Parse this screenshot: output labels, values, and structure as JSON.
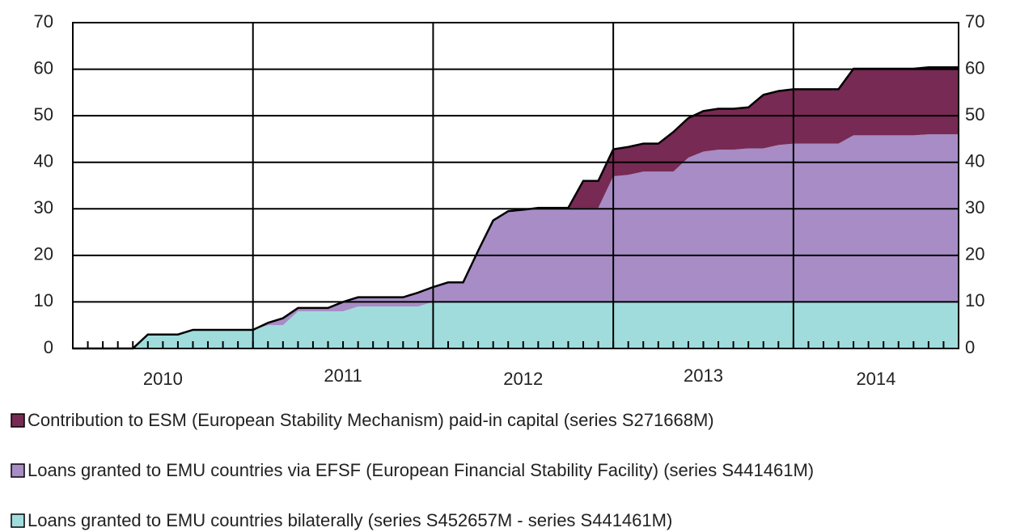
{
  "chart_data": {
    "type": "stacked_area",
    "categories": [
      null,
      null,
      null,
      null,
      null,
      null,
      null,
      null,
      null,
      null,
      null,
      null,
      null,
      null,
      null,
      null,
      null,
      null,
      null,
      null,
      null,
      null,
      null,
      null,
      null,
      null,
      null,
      null,
      null,
      null,
      null,
      null,
      null,
      null,
      null,
      null,
      null,
      null,
      null,
      null,
      null,
      null,
      null,
      null,
      null,
      null,
      null,
      null,
      null,
      null,
      null,
      null,
      null,
      null,
      null,
      null,
      null,
      null,
      null,
      null
    ],
    "year_labels": [
      "2010",
      "2011",
      "2012",
      "2013",
      "2014"
    ],
    "series": [
      {
        "name": "Loans granted to EMU countries bilaterally (series S452657M - series S441461M)",
        "color": "#a0dcdc",
        "values": [
          0,
          0,
          0,
          0,
          0,
          3,
          3,
          3,
          4,
          4,
          4,
          4,
          4,
          5,
          5,
          8,
          8,
          8,
          8,
          9,
          9,
          9,
          9,
          9,
          10,
          10,
          10,
          10,
          10,
          10,
          10,
          10,
          10,
          10,
          10,
          10,
          10,
          10,
          10,
          10,
          10,
          10,
          10,
          10,
          10,
          10,
          10,
          10,
          10,
          10,
          10,
          10,
          10,
          10,
          10,
          10,
          10,
          10,
          10,
          10
        ]
      },
      {
        "name": "Loans granted to EMU countries via EFSF (European Financial Stability Facility) (series S441461M)",
        "color": "#a78cc5",
        "values": [
          0,
          0,
          0,
          0,
          0,
          0,
          0,
          0,
          0,
          0,
          0,
          0,
          0,
          0.5,
          1.5,
          0.7,
          0.7,
          0.7,
          2,
          2,
          2,
          2,
          2,
          3,
          3.2,
          4.2,
          4.2,
          11,
          17.5,
          19.5,
          19.8,
          20.2,
          20.2,
          20.2,
          20.2,
          20.2,
          27,
          27.3,
          28,
          28,
          28,
          31,
          32.3,
          32.7,
          32.7,
          33,
          33,
          33.7,
          34,
          34,
          34,
          34,
          35.8,
          35.8,
          35.8,
          35.8,
          35.8,
          36,
          36,
          36
        ]
      },
      {
        "name": "Contribution to ESM (European Stability Mechanism) paid-in capital (series S271668M)",
        "color": "#772a53",
        "values": [
          0,
          0,
          0,
          0,
          0,
          0,
          0,
          0,
          0,
          0,
          0,
          0,
          0,
          0,
          0,
          0,
          0,
          0,
          0,
          0,
          0,
          0,
          0,
          0,
          0,
          0,
          0,
          0,
          0,
          0,
          0,
          0,
          0,
          0,
          5.8,
          5.8,
          5.8,
          6,
          6,
          6,
          8.5,
          8.5,
          8.7,
          8.8,
          8.8,
          8.8,
          11.5,
          11.6,
          11.7,
          11.7,
          11.7,
          11.7,
          14.3,
          14.3,
          14.3,
          14.3,
          14.3,
          14.4,
          14.4,
          14.4
        ]
      }
    ],
    "ylim": [
      0,
      70
    ],
    "yticks": [
      0,
      10,
      20,
      30,
      40,
      50,
      60,
      70
    ],
    "grid": true
  }
}
